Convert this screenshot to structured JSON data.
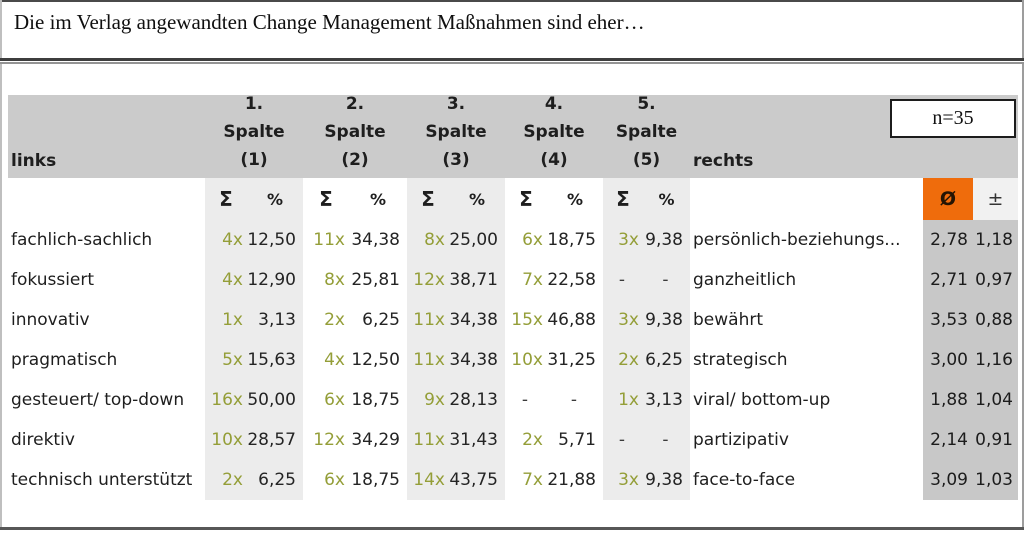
{
  "chart_data": {
    "type": "table",
    "title": "Die im Verlag angewandten Change Management Maßnahmen sind eher…",
    "sample_label": "n=35",
    "left_axis_label": "links",
    "right_axis_label": "rechts",
    "scale_points": [
      {
        "num": "1.",
        "word": "Spalte",
        "paren": "(1)"
      },
      {
        "num": "2.",
        "word": "Spalte",
        "paren": "(2)"
      },
      {
        "num": "3.",
        "word": "Spalte",
        "paren": "(3)"
      },
      {
        "num": "4.",
        "word": "Spalte",
        "paren": "(4)"
      },
      {
        "num": "5.",
        "word": "Spalte",
        "paren": "(5)"
      }
    ],
    "measures": {
      "sum": "Σ",
      "pct": "%",
      "mean": "Ø",
      "std": "±"
    },
    "rows": [
      {
        "left": "fachlich-sachlich",
        "right": "persönlich-beziehungs...",
        "counts": [
          "4x",
          "11x",
          "8x",
          "6x",
          "3x"
        ],
        "percents": [
          "12,50",
          "34,38",
          "25,00",
          "18,75",
          "9,38"
        ],
        "mean": "2,78",
        "std": "1,18"
      },
      {
        "left": "fokussiert",
        "right": "ganzheitlich",
        "counts": [
          "4x",
          "8x",
          "12x",
          "7x",
          "-"
        ],
        "percents": [
          "12,90",
          "25,81",
          "38,71",
          "22,58",
          "-"
        ],
        "mean": "2,71",
        "std": "0,97"
      },
      {
        "left": "innovativ",
        "right": "bewährt",
        "counts": [
          "1x",
          "2x",
          "11x",
          "15x",
          "3x"
        ],
        "percents": [
          "3,13",
          "6,25",
          "34,38",
          "46,88",
          "9,38"
        ],
        "mean": "3,53",
        "std": "0,88"
      },
      {
        "left": "pragmatisch",
        "right": "strategisch",
        "counts": [
          "5x",
          "4x",
          "11x",
          "10x",
          "2x"
        ],
        "percents": [
          "15,63",
          "12,50",
          "34,38",
          "31,25",
          "6,25"
        ],
        "mean": "3,00",
        "std": "1,16"
      },
      {
        "left": "gesteuert/ top-down",
        "right": "viral/ bottom-up",
        "counts": [
          "16x",
          "6x",
          "9x",
          "-",
          "1x"
        ],
        "percents": [
          "50,00",
          "18,75",
          "28,13",
          "-",
          "3,13"
        ],
        "mean": "1,88",
        "std": "1,04"
      },
      {
        "left": "direktiv",
        "right": "partizipativ",
        "counts": [
          "10x",
          "12x",
          "11x",
          "2x",
          "-"
        ],
        "percents": [
          "28,57",
          "34,29",
          "31,43",
          "5,71",
          "-"
        ],
        "mean": "2,14",
        "std": "0,91"
      },
      {
        "left": "technisch unterstützt",
        "right": "face-to-face",
        "counts": [
          "2x",
          "6x",
          "14x",
          "7x",
          "3x"
        ],
        "percents": [
          "6,25",
          "18,75",
          "43,75",
          "21,88",
          "9,38"
        ],
        "mean": "3,09",
        "std": "1,03"
      }
    ]
  },
  "colors": {
    "accent_orange": "#ef6c0c",
    "count_text": "#949e38",
    "header_bg": "#cbcbcb",
    "band_bg": "#ececec",
    "stats_bg": "#c8c8c8"
  }
}
